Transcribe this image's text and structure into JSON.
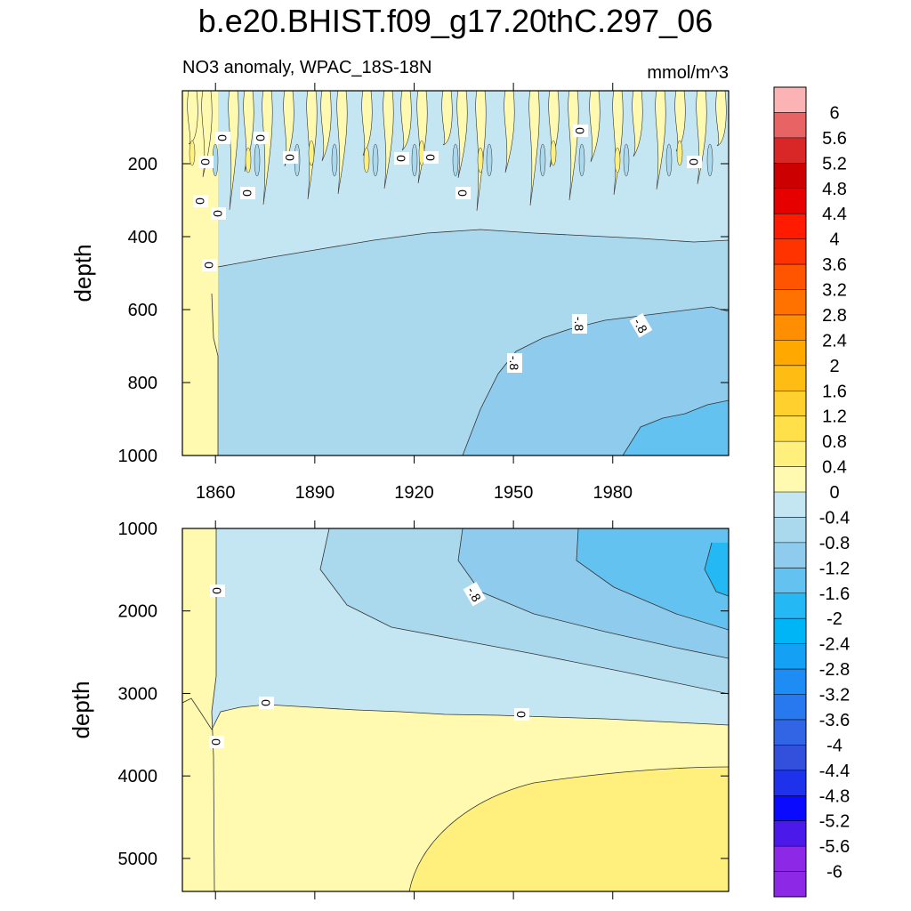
{
  "title": "b.e20.BHIST.f09_g17.20thC.297_06",
  "subtitle_left": "NO3 anomaly, WPAC_18S-18N",
  "subtitle_right": "mmol/m^3",
  "chart_data": [
    {
      "type": "heatmap",
      "panel": "upper",
      "ylabel": "depth",
      "xlabel": "",
      "xlim": [
        1850,
        2015
      ],
      "ylim": [
        1000,
        0
      ],
      "x_ticks": [
        1860,
        1890,
        1920,
        1950,
        1980
      ],
      "y_ticks": [
        200,
        400,
        600,
        800,
        1000
      ],
      "contour_labels": [
        "0",
        "0",
        "0",
        "0",
        "0",
        "0",
        "0",
        "0",
        "0",
        "0",
        "0",
        "0",
        "0",
        "-.8",
        "-.8",
        "-.8"
      ],
      "description_values": {
        "surface_0_400m": "oscillating between about -0.4 and 0.4",
        "deep_after_1940": "about -0.8 to -1.6"
      }
    },
    {
      "type": "heatmap",
      "panel": "lower",
      "ylabel": "depth",
      "xlabel": "",
      "xlim": [
        1850,
        2015
      ],
      "ylim": [
        5400,
        1000
      ],
      "x_ticks": [
        1860,
        1890,
        1920,
        1950,
        1980
      ],
      "y_ticks": [
        1000,
        2000,
        3000,
        4000,
        5000
      ],
      "contour_labels": [
        "0",
        "0",
        "0",
        "0",
        "-.8"
      ],
      "description_values": {
        "1000_3000m": "negative, down to about -2 near 1500 m late in record",
        "below_3200m": "positive, up to about 0.8 near 4500-5000 m"
      }
    }
  ],
  "colorbar": {
    "labels": [
      "6",
      "5.6",
      "5.2",
      "4.8",
      "4.4",
      "4",
      "3.6",
      "3.2",
      "2.8",
      "2.4",
      "2",
      "1.6",
      "1.2",
      "0.8",
      "0.4",
      "0",
      "-0.4",
      "-0.8",
      "-1.2",
      "-1.6",
      "-2",
      "-2.4",
      "-2.8",
      "-3.2",
      "-3.6",
      "-4",
      "-4.4",
      "-4.8",
      "-5.2",
      "-5.6",
      "-6"
    ],
    "colors": [
      "#fbb3b3",
      "#e86464",
      "#d92626",
      "#cc0000",
      "#e60000",
      "#ff1a00",
      "#ff3300",
      "#ff5500",
      "#ff7200",
      "#ff8f00",
      "#ffa800",
      "#ffbd14",
      "#ffd02e",
      "#ffe04a",
      "#fff07d",
      "#fffab0",
      "#c4e6f3",
      "#aad9ee",
      "#8fcbed",
      "#63c2f0",
      "#24b8f5",
      "#00b5f5",
      "#14a0f5",
      "#1e8cf5",
      "#2878f0",
      "#3264e6",
      "#3250dc",
      "#1e32eb",
      "#0a0aff",
      "#4b1aeb",
      "#8c28e6",
      "#8c28e6"
    ]
  }
}
